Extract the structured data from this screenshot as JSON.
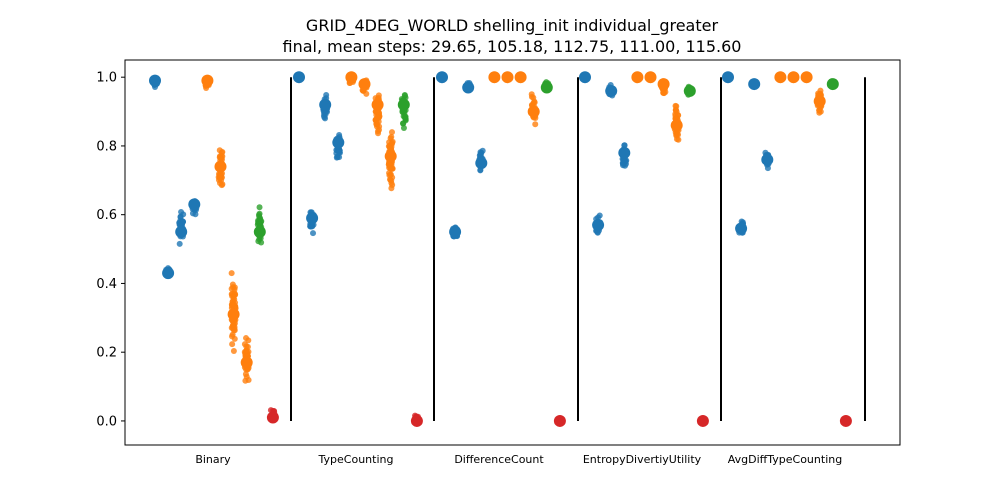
{
  "chart_data": {
    "type": "scatter",
    "title": "GRID_4DEG_WORLD shelling_init individual_greater",
    "subtitle": "final, mean steps: 29.65, 105.18, 112.75, 111.00, 115.60",
    "xlabel": "",
    "ylabel": "",
    "ylim": [
      -0.07,
      1.05
    ],
    "yticks": [
      0.0,
      0.2,
      0.4,
      0.6,
      0.8,
      1.0
    ],
    "ytick_labels": [
      "0.0",
      "0.2",
      "0.4",
      "0.6",
      "0.8",
      "1.0"
    ],
    "grid": false,
    "legend": "none",
    "categories": [
      "Binary",
      "TypeCounting",
      "DifferenceCount",
      "EntropyDivertiyUtility",
      "AvgDiffTypeCounting"
    ],
    "colors": {
      "blue": "#1f77b4",
      "orange": "#ff7f0e",
      "green": "#2ca02c",
      "red": "#d62728",
      "separator": "#000000"
    },
    "groups": [
      {
        "category": "Binary",
        "strips": [
          {
            "color": "blue",
            "mean": 0.99,
            "min": 0.96,
            "max": 1.0
          },
          {
            "color": "blue",
            "mean": 0.43,
            "min": 0.41,
            "max": 0.46
          },
          {
            "color": "blue",
            "mean": 0.55,
            "min": 0.5,
            "max": 0.63
          },
          {
            "color": "blue",
            "mean": 0.63,
            "min": 0.59,
            "max": 0.66
          },
          {
            "color": "orange",
            "mean": 0.99,
            "min": 0.96,
            "max": 1.0
          },
          {
            "color": "orange",
            "mean": 0.74,
            "min": 0.66,
            "max": 0.82
          },
          {
            "color": "orange",
            "mean": 0.31,
            "min": 0.19,
            "max": 0.44
          },
          {
            "color": "orange",
            "mean": 0.17,
            "min": 0.1,
            "max": 0.26
          },
          {
            "color": "green",
            "mean": 0.55,
            "min": 0.5,
            "max": 0.63
          },
          {
            "color": "red",
            "mean": 0.01,
            "min": 0.0,
            "max": 0.04
          }
        ]
      },
      {
        "category": "TypeCounting",
        "strips": [
          {
            "color": "blue",
            "mean": 1.0,
            "min": 0.99,
            "max": 1.0
          },
          {
            "color": "blue",
            "mean": 0.59,
            "min": 0.54,
            "max": 0.62
          },
          {
            "color": "blue",
            "mean": 0.92,
            "min": 0.85,
            "max": 0.96
          },
          {
            "color": "blue",
            "mean": 0.81,
            "min": 0.74,
            "max": 0.85
          },
          {
            "color": "orange",
            "mean": 1.0,
            "min": 0.98,
            "max": 1.0
          },
          {
            "color": "orange",
            "mean": 0.98,
            "min": 0.94,
            "max": 1.0
          },
          {
            "color": "orange",
            "mean": 0.92,
            "min": 0.81,
            "max": 0.98
          },
          {
            "color": "orange",
            "mean": 0.77,
            "min": 0.64,
            "max": 0.88
          },
          {
            "color": "green",
            "mean": 0.92,
            "min": 0.84,
            "max": 0.97
          },
          {
            "color": "red",
            "mean": 0.0,
            "min": 0.0,
            "max": 0.02
          }
        ]
      },
      {
        "category": "DifferenceCount",
        "strips": [
          {
            "color": "blue",
            "mean": 1.0,
            "min": 1.0,
            "max": 1.0
          },
          {
            "color": "blue",
            "mean": 0.55,
            "min": 0.51,
            "max": 0.58
          },
          {
            "color": "blue",
            "mean": 0.97,
            "min": 0.96,
            "max": 0.99
          },
          {
            "color": "blue",
            "mean": 0.75,
            "min": 0.7,
            "max": 0.8
          },
          {
            "color": "orange",
            "mean": 1.0,
            "min": 1.0,
            "max": 1.0
          },
          {
            "color": "orange",
            "mean": 1.0,
            "min": 1.0,
            "max": 1.0
          },
          {
            "color": "orange",
            "mean": 1.0,
            "min": 1.0,
            "max": 1.0
          },
          {
            "color": "orange",
            "mean": 0.9,
            "min": 0.84,
            "max": 0.96
          },
          {
            "color": "green",
            "mean": 0.97,
            "min": 0.96,
            "max": 0.99
          },
          {
            "color": "red",
            "mean": 0.0,
            "min": 0.0,
            "max": 0.0
          }
        ]
      },
      {
        "category": "EntropyDivertiyUtility",
        "strips": [
          {
            "color": "blue",
            "mean": 1.0,
            "min": 1.0,
            "max": 1.0
          },
          {
            "color": "blue",
            "mean": 0.57,
            "min": 0.53,
            "max": 0.61
          },
          {
            "color": "blue",
            "mean": 0.96,
            "min": 0.93,
            "max": 0.99
          },
          {
            "color": "blue",
            "mean": 0.78,
            "min": 0.72,
            "max": 0.82
          },
          {
            "color": "orange",
            "mean": 1.0,
            "min": 1.0,
            "max": 1.0
          },
          {
            "color": "orange",
            "mean": 1.0,
            "min": 1.0,
            "max": 1.0
          },
          {
            "color": "orange",
            "mean": 0.98,
            "min": 0.94,
            "max": 1.0
          },
          {
            "color": "orange",
            "mean": 0.86,
            "min": 0.79,
            "max": 0.94
          },
          {
            "color": "green",
            "mean": 0.96,
            "min": 0.94,
            "max": 0.98
          },
          {
            "color": "red",
            "mean": 0.0,
            "min": 0.0,
            "max": 0.0
          }
        ]
      },
      {
        "category": "AvgDiffTypeCounting",
        "strips": [
          {
            "color": "blue",
            "mean": 1.0,
            "min": 1.0,
            "max": 1.0
          },
          {
            "color": "blue",
            "mean": 0.56,
            "min": 0.53,
            "max": 0.59
          },
          {
            "color": "blue",
            "mean": 0.98,
            "min": 0.97,
            "max": 0.99
          },
          {
            "color": "blue",
            "mean": 0.76,
            "min": 0.72,
            "max": 0.8
          },
          {
            "color": "orange",
            "mean": 1.0,
            "min": 1.0,
            "max": 1.0
          },
          {
            "color": "orange",
            "mean": 1.0,
            "min": 1.0,
            "max": 1.0
          },
          {
            "color": "orange",
            "mean": 1.0,
            "min": 1.0,
            "max": 1.0
          },
          {
            "color": "orange",
            "mean": 0.93,
            "min": 0.88,
            "max": 0.99
          },
          {
            "color": "green",
            "mean": 0.98,
            "min": 0.97,
            "max": 0.99
          },
          {
            "color": "red",
            "mean": 0.0,
            "min": 0.0,
            "max": 0.0
          }
        ]
      }
    ]
  }
}
